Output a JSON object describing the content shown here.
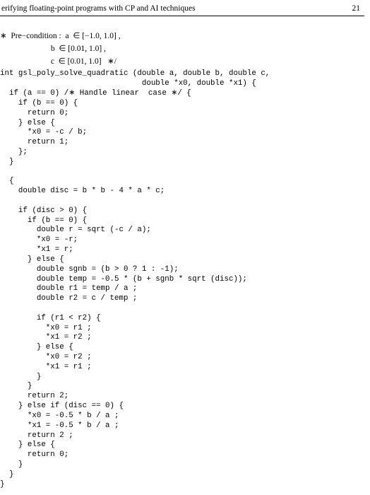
{
  "header": {
    "title": "erifying floating-point programs with CP and AI techniques",
    "page_number": "21"
  },
  "precondition": {
    "line1": "∗  Pre−condition :  a  ∈ [−1.0, 1.0] ,",
    "line2": "                         b  ∈ [0.01, 1.0] ,",
    "line3": "                         c  ∈ [0.01, 1.0]   ∗/"
  },
  "code": {
    "text": "int gsl_poly_solve_quadratic (double a, double b, double c,\n                               double *x0, double *x1) {\n  if (a == 0) /∗ Handle linear  case ∗/ {\n    if (b == 0) {\n      return 0;\n    } else {\n      *x0 = -c / b;\n      return 1;\n    };\n  }\n\n  {\n    double disc = b * b - 4 * a * c;\n\n    if (disc > 0) {\n      if (b == 0) {\n        double r = sqrt (-c / a);\n        *x0 = -r;\n        *x1 = r;\n      } else {\n        double sgnb = (b > 0 ? 1 : -1);\n        double temp = -0.5 * (b + sgnb * sqrt (disc));\n        double r1 = temp / a ;\n        double r2 = c / temp ;\n\n        if (r1 < r2) {\n          *x0 = r1 ;\n          *x1 = r2 ;\n        } else {\n          *x0 = r2 ;\n          *x1 = r1 ;\n        }\n      }\n      return 2;\n    } else if (disc == 0) {\n      *x0 = -0.5 * b / a ;\n      *x1 = -0.5 * b / a ;\n      return 2 ;\n    } else {\n      return 0;\n    }\n  }\n}"
  }
}
